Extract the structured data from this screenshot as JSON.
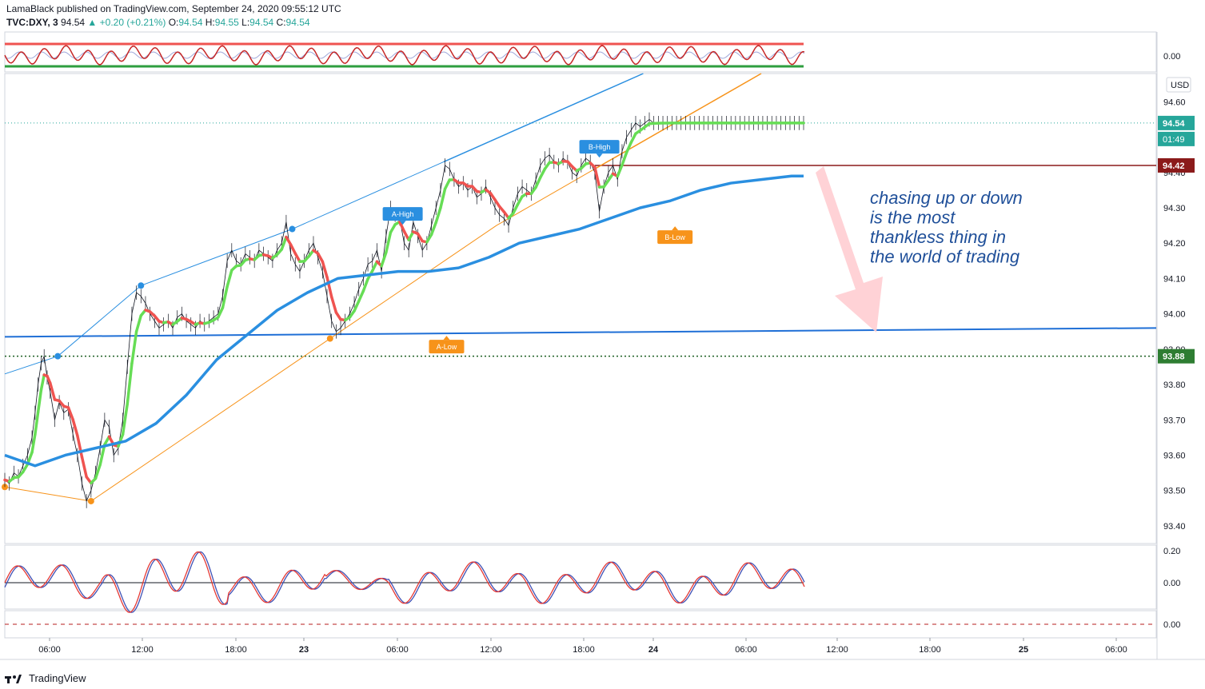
{
  "header": {
    "published_line": "LamaBlack published on TradingView.com, September 24, 2020 09:55:12 UTC",
    "symbol": "TVC:DXY, 3",
    "last": "94.54",
    "change": "+0.20 (+0.21%)",
    "o_label": "O:",
    "o": "94.54",
    "h_label": "H:",
    "h": "94.55",
    "l_label": "L:",
    "l": "94.54",
    "c_label": "C:",
    "c": "94.54"
  },
  "footer": {
    "brand": "TradingView"
  },
  "annotation": "chasing up or down\nis the most\nthankless thing in\nthe world of trading",
  "markers": {
    "a_high": "A-High",
    "b_high": "B-High",
    "a_low": "A-Low",
    "b_low": "B-Low"
  },
  "colors": {
    "price": "#131722",
    "ema_up": "#66dd55",
    "ema_down": "#ef5350",
    "ma_blue": "#2a8fe0",
    "trend_blue": "#2a8fe0",
    "trend_orange": "#f7931a",
    "support": "#1f6fd6",
    "resistance": "#8b1a1a",
    "arrow": "#ffcdd2",
    "label_teal": "#26a69a",
    "annotation": "#1f4f99"
  },
  "chart_data": [
    {
      "type": "line",
      "panel": "oscillator-top",
      "yticks": [
        "0.00"
      ]
    },
    {
      "type": "line",
      "panel": "price",
      "currency": "USD",
      "yticks": [
        "94.60",
        "94.50",
        "94.40",
        "94.30",
        "94.20",
        "94.10",
        "94.00",
        "93.90",
        "93.80",
        "93.70",
        "93.60",
        "93.50",
        "93.40"
      ],
      "ylim": [
        93.35,
        94.68
      ],
      "xticks": [
        "06:00",
        "12:00",
        "18:00",
        "23",
        "06:00",
        "12:00",
        "18:00",
        "24",
        "06:00",
        "12:00",
        "18:00",
        "25",
        "06:00"
      ],
      "price_labels": {
        "last": "94.54",
        "countdown": "01:49",
        "resistance": "94.42",
        "support": "93.88"
      },
      "series": [
        {
          "kind": "price",
          "x": [
            0,
            3,
            6,
            9,
            12,
            15,
            18,
            20,
            22,
            24,
            26,
            28,
            30,
            33,
            36,
            39,
            42,
            45,
            48,
            51,
            54,
            57,
            60,
            63,
            66,
            69,
            72,
            75,
            78,
            81,
            84,
            87,
            90,
            93,
            96,
            99,
            102,
            105,
            108,
            111,
            114,
            117,
            120,
            123,
            126,
            129,
            132,
            135,
            138,
            141,
            144,
            147,
            150,
            153,
            156,
            159,
            162,
            165,
            168,
            171,
            174,
            177,
            180,
            183,
            186,
            189,
            192,
            195,
            198,
            201,
            204,
            207,
            210,
            213,
            216,
            219,
            222,
            225,
            228,
            231,
            234,
            237,
            240,
            243,
            246,
            249,
            252,
            255,
            258,
            261,
            264,
            267,
            270,
            273,
            276,
            279,
            282,
            285,
            288,
            291,
            294,
            297,
            300,
            303,
            306,
            309,
            312,
            315,
            318,
            321,
            324,
            327,
            330,
            333,
            336,
            339,
            342,
            345,
            348,
            351,
            354,
            357,
            360,
            363,
            366,
            369,
            372,
            375,
            378,
            381,
            384,
            387,
            390,
            393,
            396,
            399,
            402,
            405,
            408,
            411,
            414,
            417,
            420,
            423,
            426,
            429,
            432,
            435,
            438,
            441,
            444,
            447,
            450,
            453,
            456,
            459,
            462,
            465,
            468,
            471,
            474,
            477,
            480,
            483,
            486,
            489,
            492,
            495,
            498,
            501,
            504,
            507,
            510,
            513,
            516,
            519,
            522,
            525,
            528
          ],
          "values": [
            93.53,
            93.52,
            93.55,
            93.54,
            93.57,
            93.6,
            93.65,
            93.72,
            93.8,
            93.86,
            93.88,
            93.82,
            93.78,
            93.7,
            93.75,
            93.72,
            93.73,
            93.66,
            93.6,
            93.52,
            93.47,
            93.5,
            93.55,
            93.62,
            93.7,
            93.68,
            93.6,
            93.62,
            93.7,
            93.85,
            94.0,
            94.06,
            94.05,
            94.03,
            94.0,
            93.98,
            93.96,
            93.97,
            93.98,
            93.96,
            93.99,
            94.0,
            93.98,
            93.97,
            93.96,
            93.98,
            93.97,
            93.98,
            93.99,
            94.0,
            94.05,
            94.15,
            94.18,
            94.15,
            94.14,
            94.17,
            94.16,
            94.15,
            94.18,
            94.17,
            94.16,
            94.15,
            94.18,
            94.2,
            94.26,
            94.17,
            94.14,
            94.12,
            94.15,
            94.18,
            94.2,
            94.16,
            94.12,
            94.05,
            93.98,
            93.95,
            93.96,
            93.98,
            94.0,
            94.03,
            94.07,
            94.1,
            94.14,
            94.15,
            94.18,
            94.12,
            94.22,
            94.3,
            94.28,
            94.27,
            94.2,
            94.18,
            94.26,
            94.22,
            94.18,
            94.2,
            94.25,
            94.3,
            94.35,
            94.42,
            94.41,
            94.38,
            94.36,
            94.37,
            94.35,
            94.36,
            94.33,
            94.34,
            94.36,
            94.33,
            94.3,
            94.28,
            94.27,
            94.25,
            94.3,
            94.34,
            94.36,
            94.35,
            94.34,
            94.38,
            94.42,
            94.44,
            94.45,
            94.43,
            94.42,
            94.44,
            94.43,
            94.4,
            94.39,
            94.42,
            94.44,
            94.43,
            94.4,
            94.29,
            94.36,
            94.4,
            94.42,
            94.38,
            94.46,
            94.5,
            94.52,
            94.54,
            94.53,
            94.54,
            94.55,
            94.54,
            94.54,
            94.54,
            94.54,
            94.54,
            94.54,
            94.54,
            94.54,
            94.54,
            94.54,
            94.54,
            94.54,
            94.54,
            94.54,
            94.54,
            94.54,
            94.54,
            94.54,
            94.54,
            94.54,
            94.54,
            94.54,
            94.54,
            94.54,
            94.54,
            94.54,
            94.54,
            94.54,
            94.54,
            94.54,
            94.54,
            94.54,
            94.54,
            94.54
          ]
        },
        {
          "kind": "ma_blue",
          "x": [
            0,
            20,
            40,
            60,
            80,
            100,
            120,
            140,
            160,
            180,
            200,
            220,
            240,
            260,
            280,
            300,
            320,
            340,
            360,
            380,
            400,
            420,
            440,
            460,
            480,
            500,
            520,
            528
          ],
          "values": [
            93.6,
            93.57,
            93.6,
            93.62,
            93.64,
            93.69,
            93.77,
            93.87,
            93.94,
            94.01,
            94.06,
            94.1,
            94.11,
            94.12,
            94.12,
            94.13,
            94.16,
            94.2,
            94.22,
            94.24,
            94.27,
            94.3,
            94.32,
            94.35,
            94.37,
            94.38,
            94.39,
            94.39
          ]
        }
      ],
      "lines": {
        "trend_blue_upper": {
          "from": [
            0,
            93.83
          ],
          "points": [
            [
              35,
              93.88
            ],
            [
              90,
              94.08
            ],
            [
              190,
              94.24
            ],
            [
              290,
              94.43
            ]
          ],
          "extends": true
        },
        "trend_orange": {
          "from": [
            0,
            93.51
          ],
          "points": [
            [
              57,
              93.47
            ],
            [
              215,
              93.93
            ],
            [
              325,
              94.25
            ],
            [
              390,
              94.41
            ]
          ],
          "extends": true
        },
        "horizontal_support_blue": {
          "value": 93.94
        },
        "resistance_dark_red": {
          "value": 94.42
        },
        "dotted_green": {
          "value": 93.88
        },
        "dotted_teal_last": {
          "value": 94.54
        }
      }
    },
    {
      "type": "line",
      "panel": "momentum",
      "yticks": [
        "0.20",
        "0.00"
      ]
    },
    {
      "type": "line",
      "panel": "bottom",
      "yticks": [
        "0.00"
      ]
    }
  ]
}
